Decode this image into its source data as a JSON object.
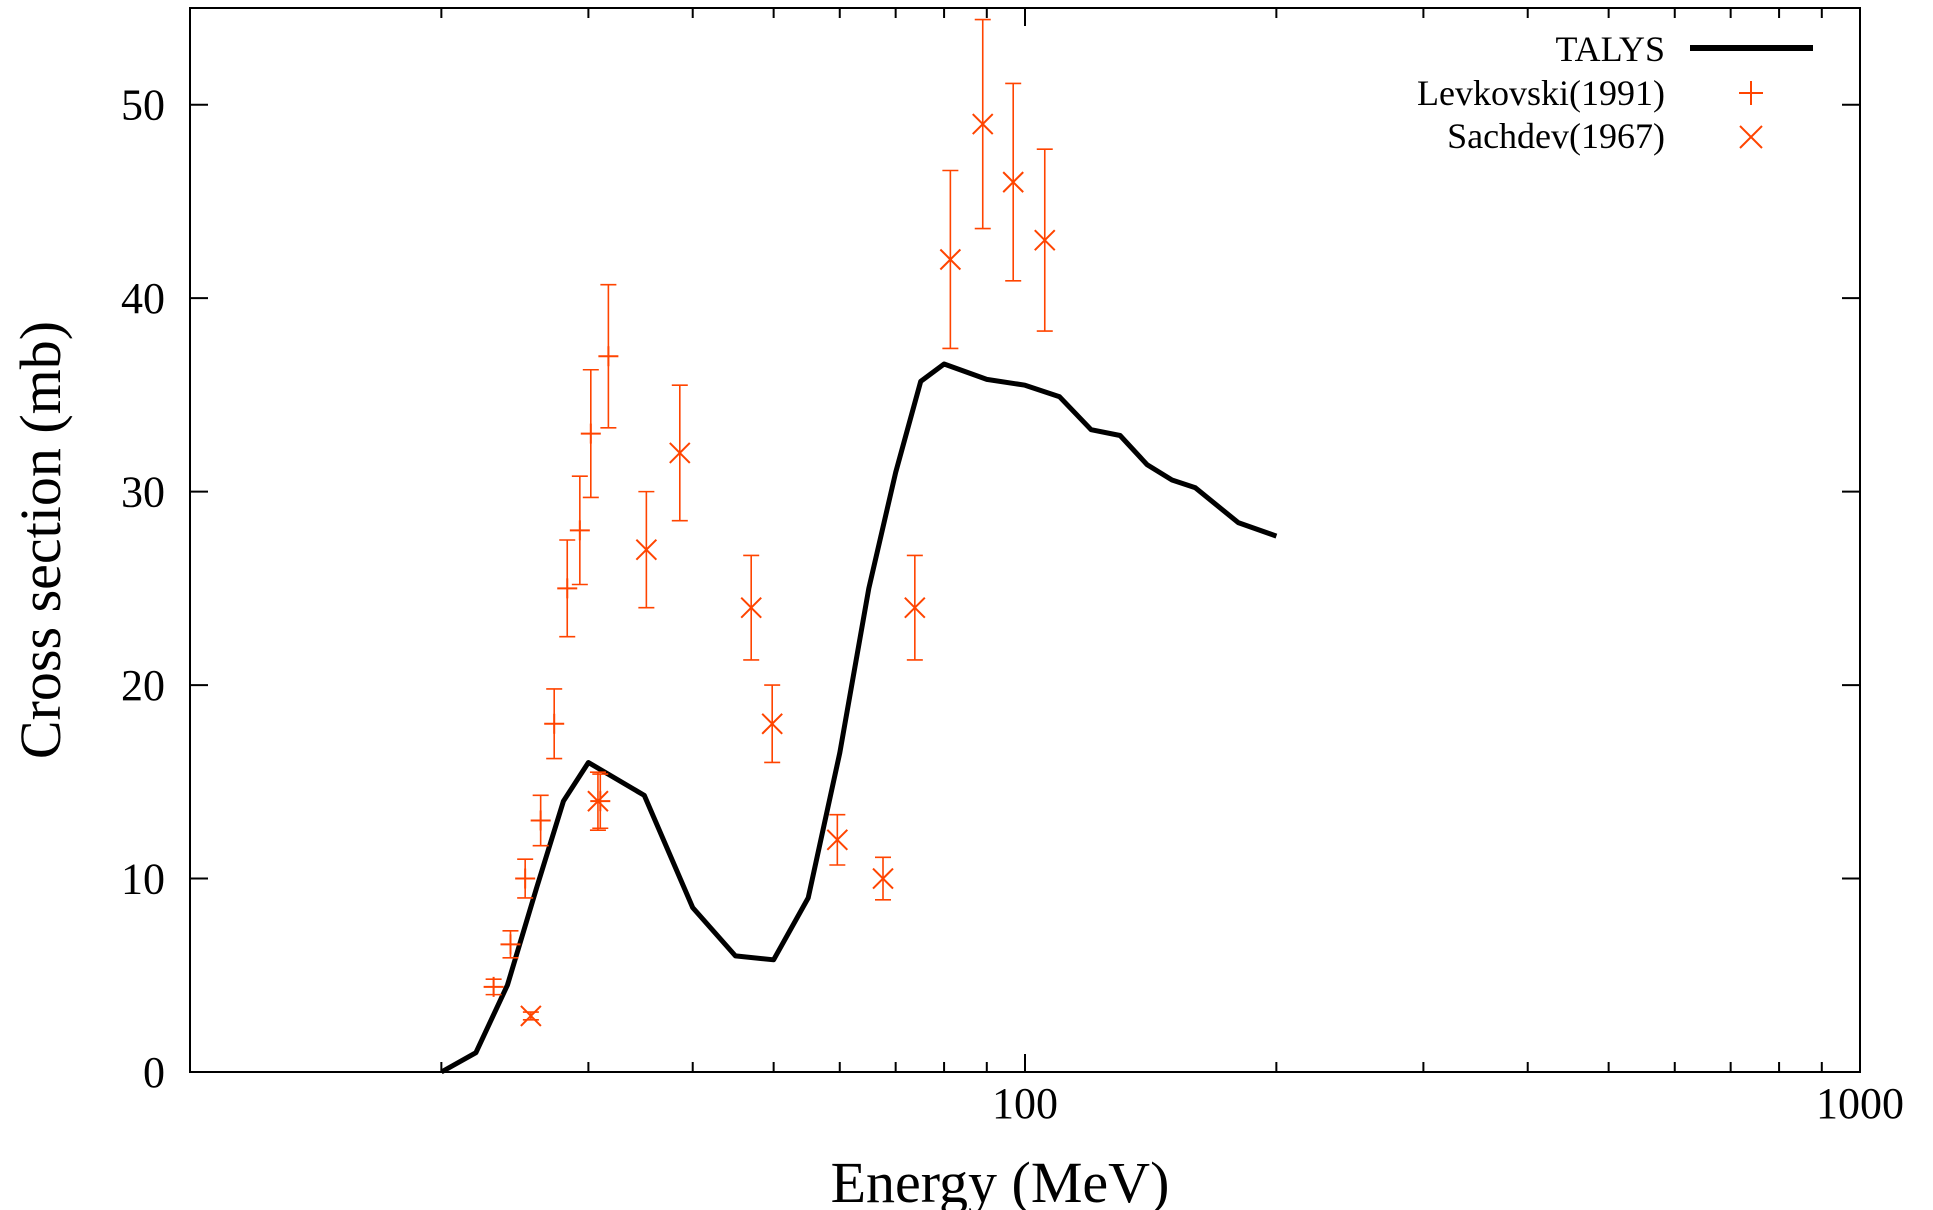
{
  "chart_data": {
    "type": "scatter",
    "title": "",
    "xlabel": "Energy (MeV)",
    "ylabel": "Cross section (mb)",
    "xscale": "log",
    "xlim": [
      10,
      1000
    ],
    "ylim": [
      0,
      55
    ],
    "grid": false,
    "legend_position": "top-right",
    "x_tick_labels": [
      {
        "value": 100,
        "label": "100"
      },
      {
        "value": 1000,
        "label": "1000"
      }
    ],
    "y_tick_labels": [
      {
        "value": 0,
        "label": "0"
      },
      {
        "value": 10,
        "label": "10"
      },
      {
        "value": 20,
        "label": "20"
      },
      {
        "value": 30,
        "label": "30"
      },
      {
        "value": 40,
        "label": "40"
      },
      {
        "value": 50,
        "label": "50"
      }
    ],
    "series": [
      {
        "name": "TALYS",
        "style": "line",
        "color": "#000000",
        "x": [
          20,
          22,
          24,
          26,
          28,
          30,
          35,
          40,
          45,
          50,
          55,
          60,
          65,
          70,
          75,
          80,
          90,
          100,
          110,
          120,
          130,
          140,
          150,
          160,
          180,
          200
        ],
        "y": [
          0,
          1,
          4.5,
          9.5,
          14,
          16,
          14.3,
          8.5,
          6,
          5.8,
          9,
          16.5,
          25,
          31,
          35.7,
          36.6,
          35.8,
          35.5,
          34.9,
          33.2,
          32.9,
          31.4,
          30.6,
          30.2,
          28.4,
          27.7
        ]
      },
      {
        "name": "Levkovski(1991)",
        "style": "plus",
        "color": "#ff4400",
        "x": [
          23.1,
          24.2,
          25.2,
          26.3,
          27.3,
          28.3,
          29.3,
          30.2,
          31.0,
          31.7
        ],
        "y": [
          4.4,
          6.6,
          10,
          13,
          18,
          25,
          28,
          33,
          14,
          37
        ],
        "yerr": [
          0.4,
          0.7,
          1.0,
          1.3,
          1.8,
          2.5,
          2.8,
          3.3,
          1.4,
          3.7
        ]
      },
      {
        "name": "Sachdev(1967)",
        "style": "cross",
        "color": "#ff4400",
        "x": [
          25.6,
          30.8,
          35.2,
          38.6,
          47.0,
          49.8,
          59.6,
          67.6,
          73.8,
          81.4,
          89.0,
          96.8,
          105.6
        ],
        "y": [
          2.9,
          14,
          27,
          32,
          24,
          18,
          12,
          10,
          24,
          42,
          49,
          46,
          43
        ],
        "yerr": [
          0.2,
          1.5,
          3.0,
          3.5,
          2.7,
          2.0,
          1.3,
          1.1,
          2.7,
          4.6,
          5.4,
          5.1,
          4.7
        ]
      }
    ]
  }
}
